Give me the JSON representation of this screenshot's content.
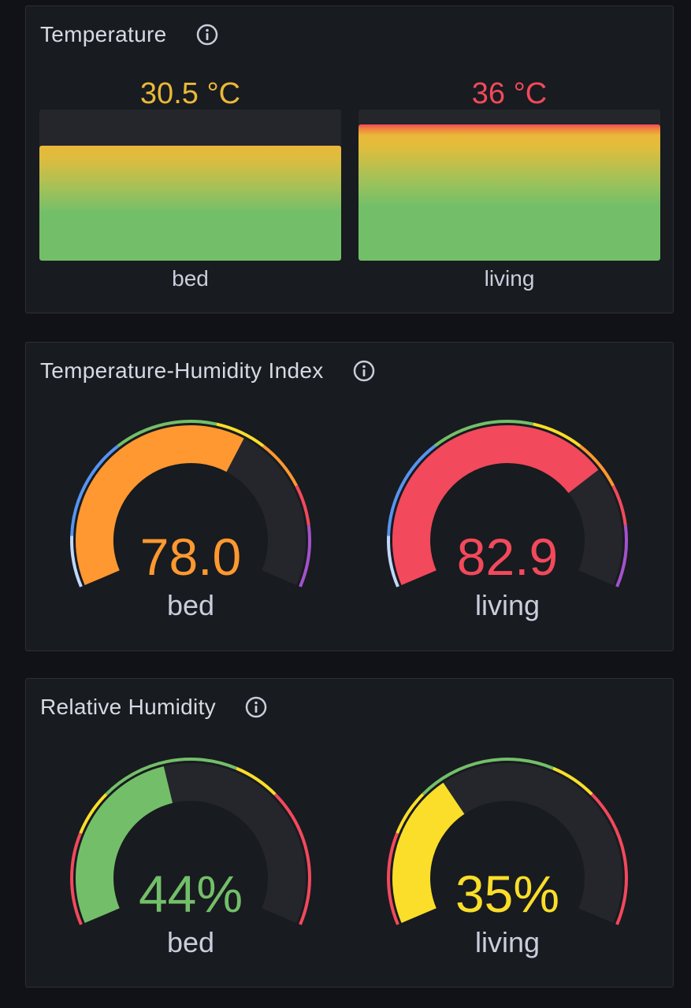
{
  "temperature": {
    "title": "Temperature",
    "min": 0,
    "max": 40,
    "thresholds": [
      {
        "color": "#73bf69",
        "value": 0
      },
      {
        "color": "#fade2a",
        "value": 31
      },
      {
        "color": "#f2495c",
        "value": 36
      }
    ],
    "items": [
      {
        "label": "bed",
        "value": 30.5,
        "display": "30.5 °C",
        "color": "#eab839"
      },
      {
        "label": "living",
        "value": 36,
        "display": "36 °C",
        "color": "#f2495c"
      }
    ]
  },
  "thi": {
    "title": "Temperature-Humidity Index",
    "min": 50,
    "max": 95,
    "thresholds": [
      {
        "color": "#c0d8ff",
        "from": 50,
        "to": 55
      },
      {
        "color": "#5794f2",
        "from": 55,
        "to": 65
      },
      {
        "color": "#73bf69",
        "from": 65,
        "to": 75
      },
      {
        "color": "#fade2a",
        "from": 75,
        "to": 80
      },
      {
        "color": "#ff9830",
        "from": 80,
        "to": 85
      },
      {
        "color": "#f2495c",
        "from": 85,
        "to": 89
      },
      {
        "color": "#a352cc",
        "from": 89,
        "to": 95
      }
    ],
    "items": [
      {
        "label": "bed",
        "value": 78.0,
        "display": "78.0",
        "color": "#ff9830"
      },
      {
        "label": "living",
        "value": 82.9,
        "display": "82.9",
        "color": "#f2495c"
      }
    ]
  },
  "humidity": {
    "title": "Relative Humidity",
    "min": 0,
    "max": 100,
    "thresholds": [
      {
        "color": "#f2495c",
        "from": 0,
        "to": 20
      },
      {
        "color": "#fade2a",
        "from": 20,
        "to": 30
      },
      {
        "color": "#73bf69",
        "from": 30,
        "to": 60
      },
      {
        "color": "#fade2a",
        "from": 60,
        "to": 70
      },
      {
        "color": "#f2495c",
        "from": 70,
        "to": 100
      }
    ],
    "items": [
      {
        "label": "bed",
        "value": 44,
        "display": "44%",
        "color": "#73bf69"
      },
      {
        "label": "living",
        "value": 35,
        "display": "35%",
        "color": "#fade2a"
      }
    ]
  }
}
